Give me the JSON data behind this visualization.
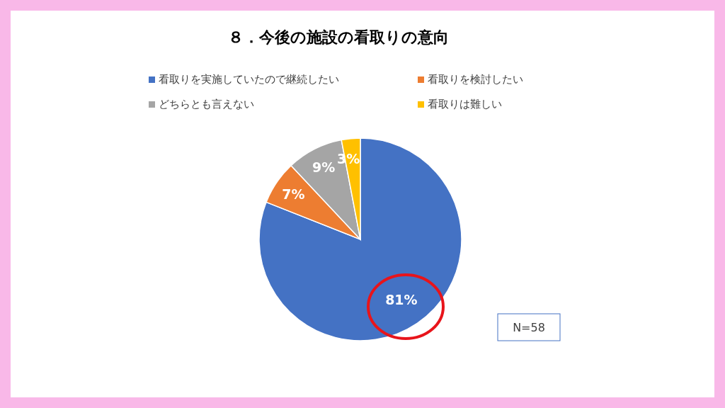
{
  "chart_data": {
    "type": "pie",
    "title": "８．今後の施設の看取りの意向",
    "categories": [
      "看取りを実施していたので継続したい",
      "看取りを検討したい",
      "どちらとも言えない",
      "看取りは難しい"
    ],
    "values": [
      81,
      7,
      9,
      3
    ],
    "colors": [
      "#4472c4",
      "#ed7d31",
      "#a5a5a5",
      "#ffc000"
    ],
    "value_labels": [
      "81%",
      "7%",
      "9%",
      "3%"
    ],
    "legend": "top",
    "annotations": [
      "N=58"
    ]
  }
}
